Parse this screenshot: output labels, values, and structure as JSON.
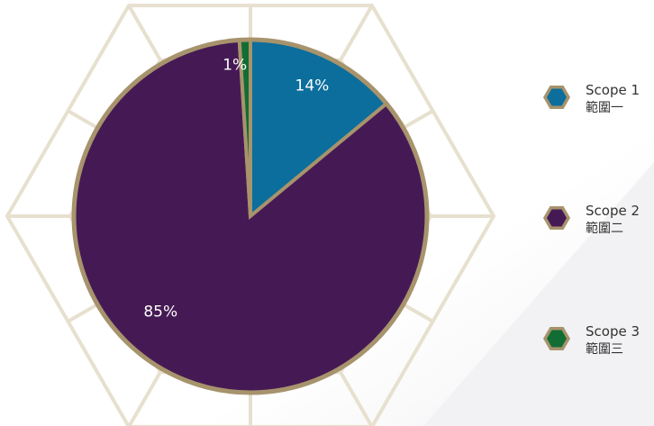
{
  "colors": {
    "frame": "#e7e0cf",
    "rim": "#a7936c",
    "scope1": "#0b6e9c",
    "scope2": "#451a54",
    "scope3": "#116d34",
    "label": "#ffffff",
    "legend_text": "#333333"
  },
  "chart_data": {
    "type": "pie",
    "start": "12 o'clock",
    "direction": "clockwise",
    "slices": [
      {
        "name": "Scope 1",
        "value": 14,
        "label": "14%",
        "color": "#0b6e9c"
      },
      {
        "name": "Scope 2",
        "value": 85,
        "label": "85%",
        "color": "#451a54"
      },
      {
        "name": "Scope 3",
        "value": 1,
        "label": "1%",
        "color": "#116d34"
      }
    ],
    "legend_position": "right"
  },
  "legend": {
    "items": [
      {
        "label": "Scope 1",
        "sublabel": "範圍一",
        "color": "#0b6e9c",
        "icon": "hexagon"
      },
      {
        "label": "Scope 2",
        "sublabel": "範圍二",
        "color": "#451a54",
        "icon": "hexagon"
      },
      {
        "label": "Scope 3",
        "sublabel": "範圍三",
        "color": "#116d34",
        "icon": "hexagon"
      }
    ]
  }
}
